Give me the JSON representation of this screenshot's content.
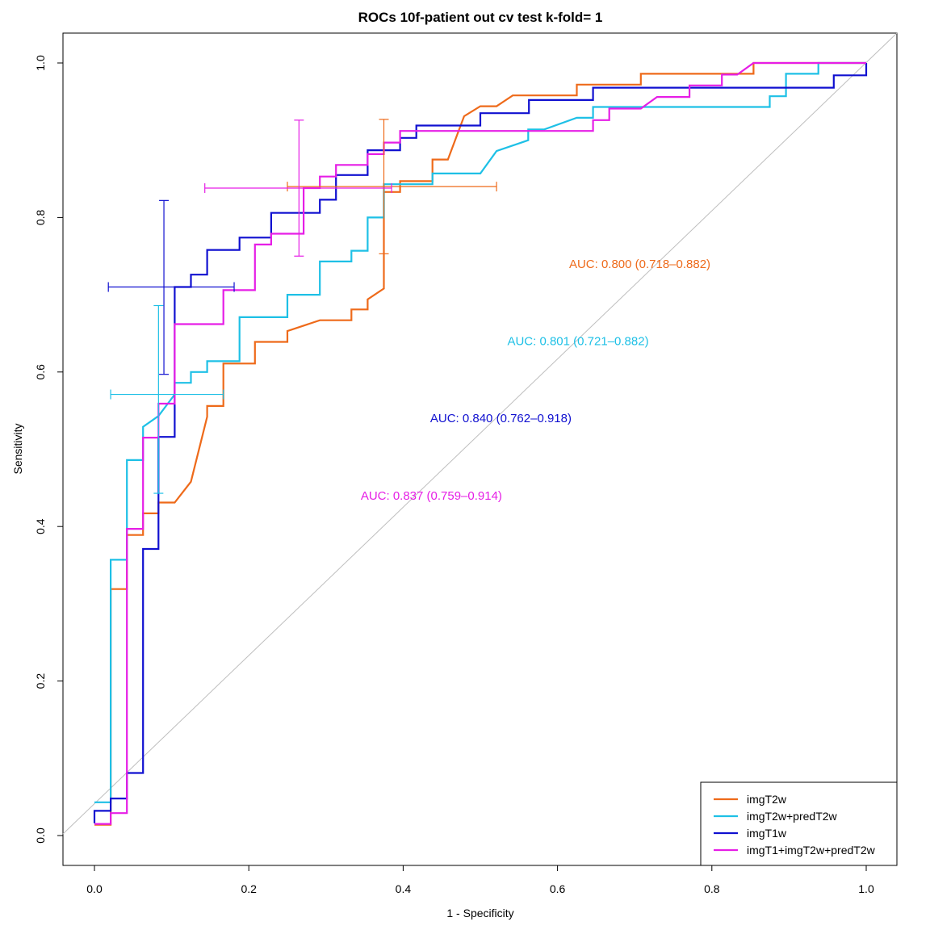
{
  "chart_data": {
    "type": "line",
    "title": "ROCs 10f-patient out cv test k-fold= 1",
    "xlabel": "1 - Specificity",
    "ylabel": "Sensitivity",
    "xlim": [
      0.0,
      1.0
    ],
    "ylim": [
      0.0,
      1.0
    ],
    "xticks": [
      "0.0",
      "0.2",
      "0.4",
      "0.6",
      "0.8",
      "1.0"
    ],
    "yticks": [
      "0.0",
      "0.2",
      "0.4",
      "0.6",
      "0.8",
      "1.0"
    ],
    "legend_position": "bottom-right",
    "reference_line": {
      "from": [
        0,
        0
      ],
      "to": [
        1,
        1
      ],
      "color": "#bebebe"
    },
    "series": [
      {
        "name": "imgT2w",
        "color": "#ee6a1a",
        "auc_text": "AUC: 0.800 (0.718–0.882)",
        "auc_label_at": [
          0.615,
          0.74
        ],
        "points": [
          [
            0,
            0.014
          ],
          [
            0.021,
            0.014
          ],
          [
            0.021,
            0.319
          ],
          [
            0.042,
            0.319
          ],
          [
            0.042,
            0.389
          ],
          [
            0.063,
            0.389
          ],
          [
            0.063,
            0.417
          ],
          [
            0.083,
            0.417
          ],
          [
            0.083,
            0.431
          ],
          [
            0.104,
            0.431
          ],
          [
            0.125,
            0.458
          ],
          [
            0.146,
            0.542
          ],
          [
            0.146,
            0.556
          ],
          [
            0.167,
            0.556
          ],
          [
            0.167,
            0.611
          ],
          [
            0.208,
            0.611
          ],
          [
            0.208,
            0.639
          ],
          [
            0.25,
            0.639
          ],
          [
            0.25,
            0.653
          ],
          [
            0.292,
            0.667
          ],
          [
            0.333,
            0.667
          ],
          [
            0.333,
            0.681
          ],
          [
            0.354,
            0.681
          ],
          [
            0.354,
            0.694
          ],
          [
            0.375,
            0.708
          ],
          [
            0.375,
            0.833
          ],
          [
            0.396,
            0.833
          ],
          [
            0.396,
            0.847
          ],
          [
            0.438,
            0.847
          ],
          [
            0.438,
            0.875
          ],
          [
            0.458,
            0.875
          ],
          [
            0.479,
            0.931
          ],
          [
            0.5,
            0.944
          ],
          [
            0.521,
            0.944
          ],
          [
            0.542,
            0.958
          ],
          [
            0.625,
            0.958
          ],
          [
            0.625,
            0.972
          ],
          [
            0.708,
            0.972
          ],
          [
            0.708,
            0.986
          ],
          [
            0.854,
            0.986
          ],
          [
            0.854,
            1.0
          ],
          [
            1.0,
            1.0
          ]
        ],
        "ci": {
          "x": 0.375,
          "y": 0.84,
          "x_low": 0.25,
          "x_high": 0.521,
          "y_low": 0.753,
          "y_high": 0.927
        }
      },
      {
        "name": "imgT2w+predT2w",
        "color": "#1ec0e6",
        "auc_text": "AUC: 0.801 (0.721–0.882)",
        "auc_label_at": [
          0.535,
          0.64
        ],
        "points": [
          [
            0,
            0.043
          ],
          [
            0.021,
            0.043
          ],
          [
            0.021,
            0.357
          ],
          [
            0.042,
            0.357
          ],
          [
            0.042,
            0.486
          ],
          [
            0.063,
            0.486
          ],
          [
            0.063,
            0.529
          ],
          [
            0.083,
            0.543
          ],
          [
            0.104,
            0.571
          ],
          [
            0.104,
            0.586
          ],
          [
            0.125,
            0.586
          ],
          [
            0.125,
            0.6
          ],
          [
            0.146,
            0.6
          ],
          [
            0.146,
            0.614
          ],
          [
            0.188,
            0.614
          ],
          [
            0.188,
            0.671
          ],
          [
            0.25,
            0.671
          ],
          [
            0.25,
            0.7
          ],
          [
            0.292,
            0.7
          ],
          [
            0.292,
            0.743
          ],
          [
            0.333,
            0.743
          ],
          [
            0.333,
            0.757
          ],
          [
            0.354,
            0.757
          ],
          [
            0.354,
            0.8
          ],
          [
            0.375,
            0.8
          ],
          [
            0.375,
            0.843
          ],
          [
            0.438,
            0.843
          ],
          [
            0.438,
            0.857
          ],
          [
            0.5,
            0.857
          ],
          [
            0.521,
            0.886
          ],
          [
            0.562,
            0.9
          ],
          [
            0.562,
            0.914
          ],
          [
            0.583,
            0.914
          ],
          [
            0.625,
            0.929
          ],
          [
            0.646,
            0.929
          ],
          [
            0.646,
            0.943
          ],
          [
            0.875,
            0.943
          ],
          [
            0.875,
            0.957
          ],
          [
            0.896,
            0.957
          ],
          [
            0.896,
            0.986
          ],
          [
            0.938,
            0.986
          ],
          [
            0.938,
            1.0
          ],
          [
            1.0,
            1.0
          ]
        ],
        "ci": {
          "x": 0.083,
          "y": 0.571,
          "x_low": 0.021,
          "x_high": 0.167,
          "y_low": 0.443,
          "y_high": 0.686
        }
      },
      {
        "name": "imgT1w",
        "color": "#1010d0",
        "auc_text": "AUC: 0.840 (0.762–0.918)",
        "auc_label_at": [
          0.435,
          0.54
        ],
        "points": [
          [
            0,
            0.016
          ],
          [
            0,
            0.032
          ],
          [
            0.021,
            0.032
          ],
          [
            0.021,
            0.048
          ],
          [
            0.042,
            0.048
          ],
          [
            0.042,
            0.081
          ],
          [
            0.063,
            0.081
          ],
          [
            0.063,
            0.371
          ],
          [
            0.083,
            0.371
          ],
          [
            0.083,
            0.516
          ],
          [
            0.104,
            0.516
          ],
          [
            0.104,
            0.71
          ],
          [
            0.125,
            0.71
          ],
          [
            0.125,
            0.726
          ],
          [
            0.146,
            0.726
          ],
          [
            0.146,
            0.758
          ],
          [
            0.188,
            0.758
          ],
          [
            0.188,
            0.774
          ],
          [
            0.229,
            0.774
          ],
          [
            0.229,
            0.806
          ],
          [
            0.292,
            0.806
          ],
          [
            0.292,
            0.823
          ],
          [
            0.313,
            0.823
          ],
          [
            0.313,
            0.855
          ],
          [
            0.354,
            0.855
          ],
          [
            0.354,
            0.887
          ],
          [
            0.396,
            0.887
          ],
          [
            0.396,
            0.903
          ],
          [
            0.417,
            0.903
          ],
          [
            0.417,
            0.919
          ],
          [
            0.5,
            0.919
          ],
          [
            0.5,
            0.935
          ],
          [
            0.563,
            0.935
          ],
          [
            0.563,
            0.952
          ],
          [
            0.646,
            0.952
          ],
          [
            0.646,
            0.968
          ],
          [
            0.958,
            0.968
          ],
          [
            0.958,
            0.984
          ],
          [
            1.0,
            0.984
          ],
          [
            1.0,
            1.0
          ]
        ],
        "ci": {
          "x": 0.09,
          "y": 0.71,
          "x_low": 0.018,
          "x_high": 0.181,
          "y_low": 0.597,
          "y_high": 0.822
        }
      },
      {
        "name": "imgT1+imgT2w+predT2w",
        "color": "#e61ee6",
        "auc_text": "AUC: 0.837 (0.759–0.914)",
        "auc_label_at": [
          0.345,
          0.44
        ],
        "points": [
          [
            0,
            0.015
          ],
          [
            0,
            0.015
          ],
          [
            0.021,
            0.015
          ],
          [
            0.021,
            0.029
          ],
          [
            0.042,
            0.029
          ],
          [
            0.042,
            0.397
          ],
          [
            0.063,
            0.397
          ],
          [
            0.063,
            0.515
          ],
          [
            0.083,
            0.515
          ],
          [
            0.083,
            0.559
          ],
          [
            0.104,
            0.559
          ],
          [
            0.104,
            0.662
          ],
          [
            0.167,
            0.662
          ],
          [
            0.167,
            0.706
          ],
          [
            0.208,
            0.706
          ],
          [
            0.208,
            0.765
          ],
          [
            0.229,
            0.765
          ],
          [
            0.229,
            0.779
          ],
          [
            0.271,
            0.779
          ],
          [
            0.271,
            0.838
          ],
          [
            0.292,
            0.838
          ],
          [
            0.292,
            0.853
          ],
          [
            0.313,
            0.853
          ],
          [
            0.313,
            0.868
          ],
          [
            0.354,
            0.868
          ],
          [
            0.354,
            0.882
          ],
          [
            0.375,
            0.882
          ],
          [
            0.375,
            0.897
          ],
          [
            0.396,
            0.897
          ],
          [
            0.396,
            0.912
          ],
          [
            0.646,
            0.912
          ],
          [
            0.646,
            0.926
          ],
          [
            0.667,
            0.926
          ],
          [
            0.667,
            0.941
          ],
          [
            0.708,
            0.941
          ],
          [
            0.729,
            0.956
          ],
          [
            0.771,
            0.956
          ],
          [
            0.771,
            0.971
          ],
          [
            0.813,
            0.971
          ],
          [
            0.813,
            0.985
          ],
          [
            0.833,
            0.985
          ],
          [
            0.854,
            1.0
          ],
          [
            1.0,
            1.0
          ]
        ],
        "ci": {
          "x": 0.265,
          "y": 0.838,
          "x_low": 0.143,
          "x_high": 0.385,
          "y_low": 0.75,
          "y_high": 0.926
        }
      }
    ]
  }
}
